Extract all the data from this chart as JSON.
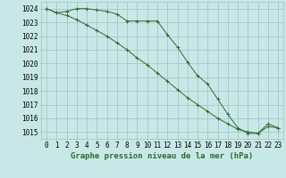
{
  "line1_x": [
    0,
    1,
    2,
    3,
    4,
    5,
    6,
    7,
    8,
    9,
    10,
    11,
    12,
    13,
    14,
    15,
    16,
    17,
    18,
    19,
    20,
    21,
    22,
    23
  ],
  "line1_y": [
    1024.0,
    1023.7,
    1023.8,
    1024.0,
    1024.0,
    1023.9,
    1023.8,
    1023.6,
    1023.1,
    1023.1,
    1023.1,
    1023.1,
    1022.1,
    1021.2,
    1020.1,
    1019.1,
    1018.5,
    1017.4,
    1016.3,
    1015.3,
    1014.9,
    1014.9,
    1015.6,
    1015.3
  ],
  "line2_x": [
    0,
    1,
    2,
    3,
    4,
    5,
    6,
    7,
    8,
    9,
    10,
    11,
    12,
    13,
    14,
    15,
    16,
    17,
    18,
    19,
    20,
    21,
    22,
    23
  ],
  "line2_y": [
    1024.0,
    1023.7,
    1023.5,
    1023.2,
    1022.8,
    1022.4,
    1022.0,
    1021.5,
    1021.0,
    1020.4,
    1019.9,
    1019.3,
    1018.7,
    1018.1,
    1017.5,
    1017.0,
    1016.5,
    1016.0,
    1015.6,
    1015.2,
    1015.0,
    1014.9,
    1015.4,
    1015.3
  ],
  "line_color": "#2d6a2d",
  "bg_color": "#c8e8e8",
  "grid_color": "#a0c0c0",
  "xlabel": "Graphe pression niveau de la mer (hPa)",
  "ylim": [
    1014.5,
    1024.5
  ],
  "xlim": [
    -0.5,
    23.5
  ],
  "yticks": [
    1015,
    1016,
    1017,
    1018,
    1019,
    1020,
    1021,
    1022,
    1023,
    1024
  ],
  "xticks": [
    0,
    1,
    2,
    3,
    4,
    5,
    6,
    7,
    8,
    9,
    10,
    11,
    12,
    13,
    14,
    15,
    16,
    17,
    18,
    19,
    20,
    21,
    22,
    23
  ],
  "xlabel_fontsize": 6.5,
  "tick_fontsize": 5.5,
  "linewidth": 0.7,
  "markersize": 3.0
}
